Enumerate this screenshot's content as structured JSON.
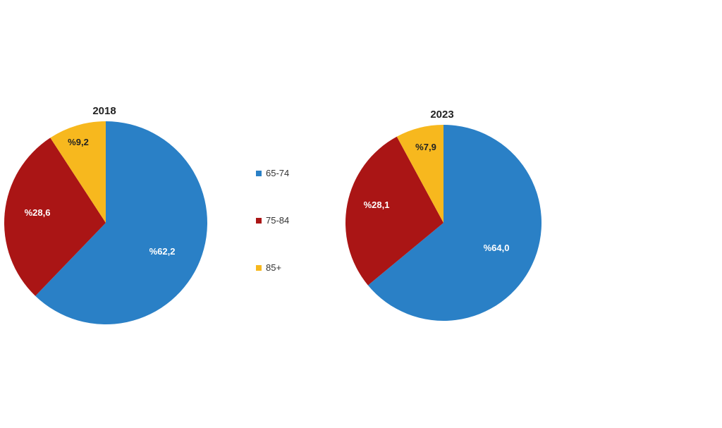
{
  "chart_data": [
    {
      "type": "pie",
      "title": "2018",
      "categories": [
        "65-74",
        "75-84",
        "85+"
      ],
      "values": [
        62.2,
        28.6,
        9.2
      ],
      "labels": [
        "%62,2",
        "%28,6",
        "%9,2"
      ],
      "colors": [
        "#2a80c6",
        "#aa1515",
        "#f7b81e"
      ]
    },
    {
      "type": "pie",
      "title": "2023",
      "categories": [
        "65-74",
        "75-84",
        "85+"
      ],
      "values": [
        64.0,
        28.1,
        7.9
      ],
      "labels": [
        "%64,0",
        "%28,1",
        "%7,9"
      ],
      "colors": [
        "#2a80c6",
        "#aa1515",
        "#f7b81e"
      ]
    }
  ],
  "legend": {
    "placement": "center",
    "items": [
      {
        "label": "65-74",
        "color": "#2a80c6"
      },
      {
        "label": "75-84",
        "color": "#aa1515"
      },
      {
        "label": "85+",
        "color": "#f7b81e"
      }
    ]
  }
}
